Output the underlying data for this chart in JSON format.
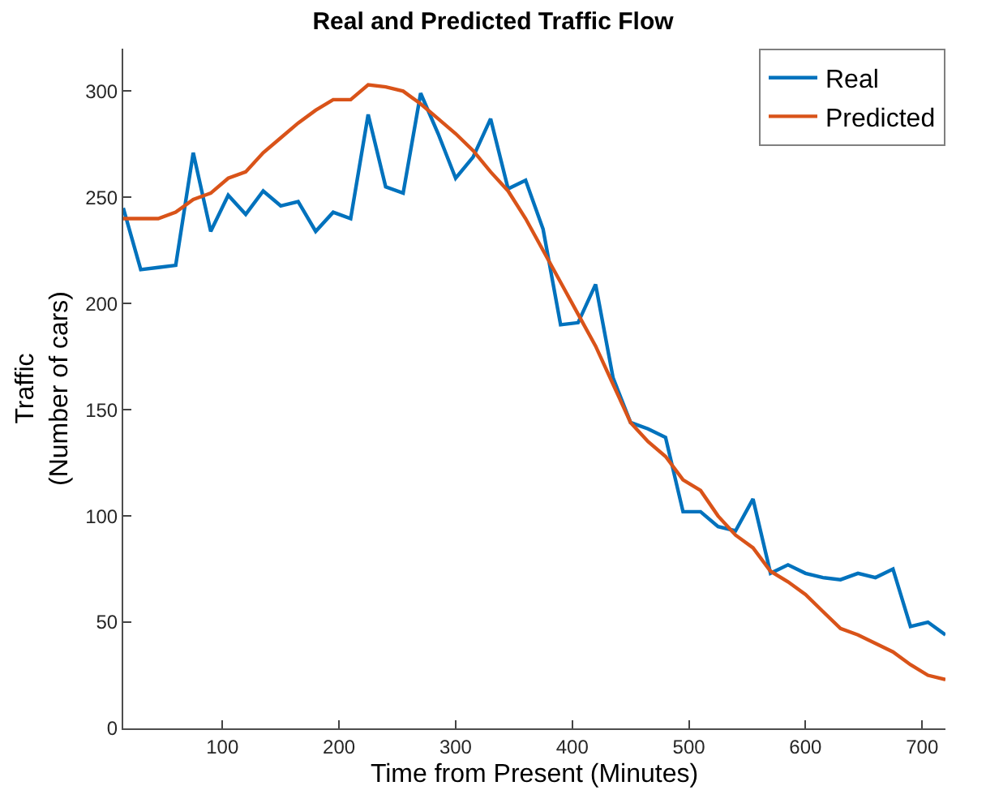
{
  "chart_data": {
    "type": "line",
    "title": "Real and Predicted Traffic Flow",
    "xlabel": "Time from Present (Minutes)",
    "ylabel": "Traffic\n(Number of cars)",
    "x": [
      15,
      30,
      45,
      60,
      75,
      90,
      105,
      120,
      135,
      150,
      165,
      180,
      195,
      210,
      225,
      240,
      255,
      270,
      285,
      300,
      315,
      330,
      345,
      360,
      375,
      390,
      405,
      420,
      435,
      450,
      465,
      480,
      495,
      510,
      525,
      540,
      555,
      570,
      585,
      600,
      615,
      630,
      645,
      660,
      675,
      690,
      705,
      720
    ],
    "series": [
      {
        "name": "Real",
        "color": "#0072bd",
        "values": [
          245,
          216,
          217,
          218,
          271,
          234,
          251,
          242,
          253,
          246,
          248,
          234,
          243,
          240,
          289,
          255,
          252,
          299,
          280,
          259,
          269,
          287,
          254,
          258,
          235,
          190,
          191,
          209,
          165,
          144,
          141,
          137,
          102,
          102,
          95,
          93,
          108,
          73,
          77,
          73,
          71,
          70,
          73,
          71,
          75,
          48,
          50,
          44
        ]
      },
      {
        "name": "Predicted",
        "color": "#d95319",
        "values": [
          240,
          240,
          240,
          243,
          249,
          252,
          259,
          262,
          271,
          278,
          285,
          291,
          296,
          296,
          303,
          302,
          300,
          294,
          287,
          280,
          272,
          262,
          253,
          240,
          225,
          210,
          195,
          180,
          162,
          144,
          135,
          128,
          117,
          112,
          100,
          91,
          85,
          74,
          69,
          63,
          55,
          47,
          44,
          40,
          36,
          30,
          25,
          23
        ]
      }
    ],
    "xlim": [
      15,
      720
    ],
    "xticks": [
      100,
      200,
      300,
      400,
      500,
      600,
      700
    ],
    "ylim": [
      0,
      320
    ],
    "yticks": [
      0,
      50,
      100,
      150,
      200,
      250,
      300
    ],
    "legend": "top right",
    "marker": "none",
    "line_style": "solid"
  }
}
